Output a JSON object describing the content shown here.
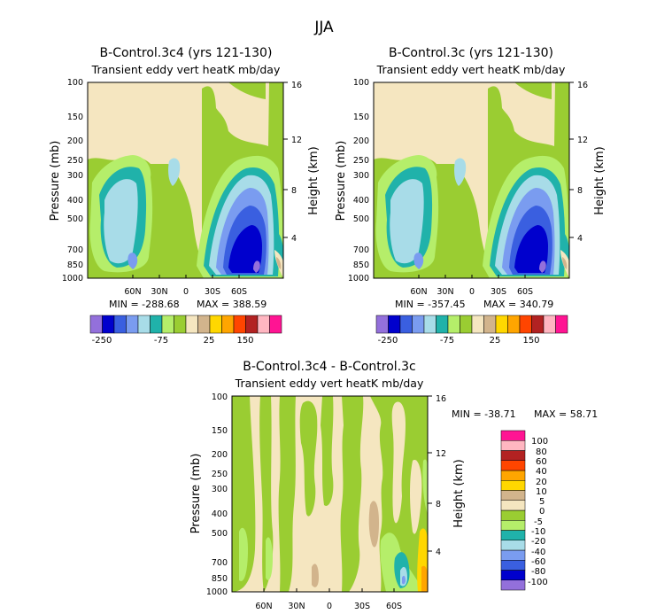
{
  "figure_title": "JJA",
  "colors": {
    "-100": "#9370DB",
    "-80": "#0000CD",
    "-60": "#3A5FE0",
    "-40": "#7A9CF0",
    "-20": "#A8DCE8",
    "-10": "#20B2AA",
    "-5": "#B5EE6A",
    "0": "#9ACD32",
    "5": "#F5E6C0",
    "10": "#D2B48C",
    "20": "#FFD700",
    "40": "#FFA500",
    "60": "#FF4500",
    "80": "#B22222",
    "90": "#FFB6C1",
    "100": "#FF1493"
  },
  "chart_data": [
    {
      "type": "contour",
      "id": "p1",
      "title": "B-Control.3c4 (yrs 121-130)",
      "subtitle": "Transient eddy vert heatK mb/day",
      "ylabel": "Pressure (mb)",
      "y2label": "Height (km)",
      "pressure_ticks": [
        "100",
        "150",
        "200",
        "250",
        "300",
        "400",
        "500",
        "700",
        "850",
        "1000"
      ],
      "height_ticks": [
        "16",
        "12",
        "8",
        "4"
      ],
      "lat_ticks": [
        "60N",
        "30N",
        "0",
        "30S",
        "60S"
      ],
      "min_label": "MIN = -288.68",
      "max_label": "MAX = 388.59",
      "min": -288.68,
      "max": 388.59,
      "colorbar_labels": [
        "-250",
        "-75",
        "25",
        "150"
      ]
    },
    {
      "type": "contour",
      "id": "p2",
      "title": "B-Control.3c (yrs 121-130)",
      "subtitle": "Transient eddy vert heatK mb/day",
      "ylabel": "Pressure (mb)",
      "y2label": "Height (km)",
      "pressure_ticks": [
        "100",
        "150",
        "200",
        "250",
        "300",
        "400",
        "500",
        "700",
        "850",
        "1000"
      ],
      "height_ticks": [
        "16",
        "12",
        "8",
        "4"
      ],
      "lat_ticks": [
        "60N",
        "30N",
        "0",
        "30S",
        "60S"
      ],
      "min_label": "MIN = -357.45",
      "max_label": "MAX = 340.79",
      "min": -357.45,
      "max": 340.79,
      "colorbar_labels": [
        "-250",
        "-75",
        "25",
        "150"
      ]
    },
    {
      "type": "contour",
      "id": "p3",
      "title": "B-Control.3c4 - B-Control.3c",
      "subtitle": "Transient eddy vert heatK mb/day",
      "ylabel": "Pressure (mb)",
      "y2label": "Height (km)",
      "pressure_ticks": [
        "100",
        "150",
        "200",
        "250",
        "300",
        "400",
        "500",
        "700",
        "850",
        "1000"
      ],
      "height_ticks": [
        "16",
        "12",
        "8",
        "4"
      ],
      "lat_ticks": [
        "60N",
        "30N",
        "0",
        "30S",
        "60S"
      ],
      "min_label": "MIN = -38.71",
      "max_label": "MAX = 58.71",
      "min": -38.71,
      "max": 58.71,
      "colorbar_labels": [
        "100",
        "80",
        "60",
        "40",
        "20",
        "10",
        "5",
        "0",
        "-5",
        "-10",
        "-20",
        "-40",
        "-60",
        "-80",
        "-100"
      ]
    }
  ]
}
